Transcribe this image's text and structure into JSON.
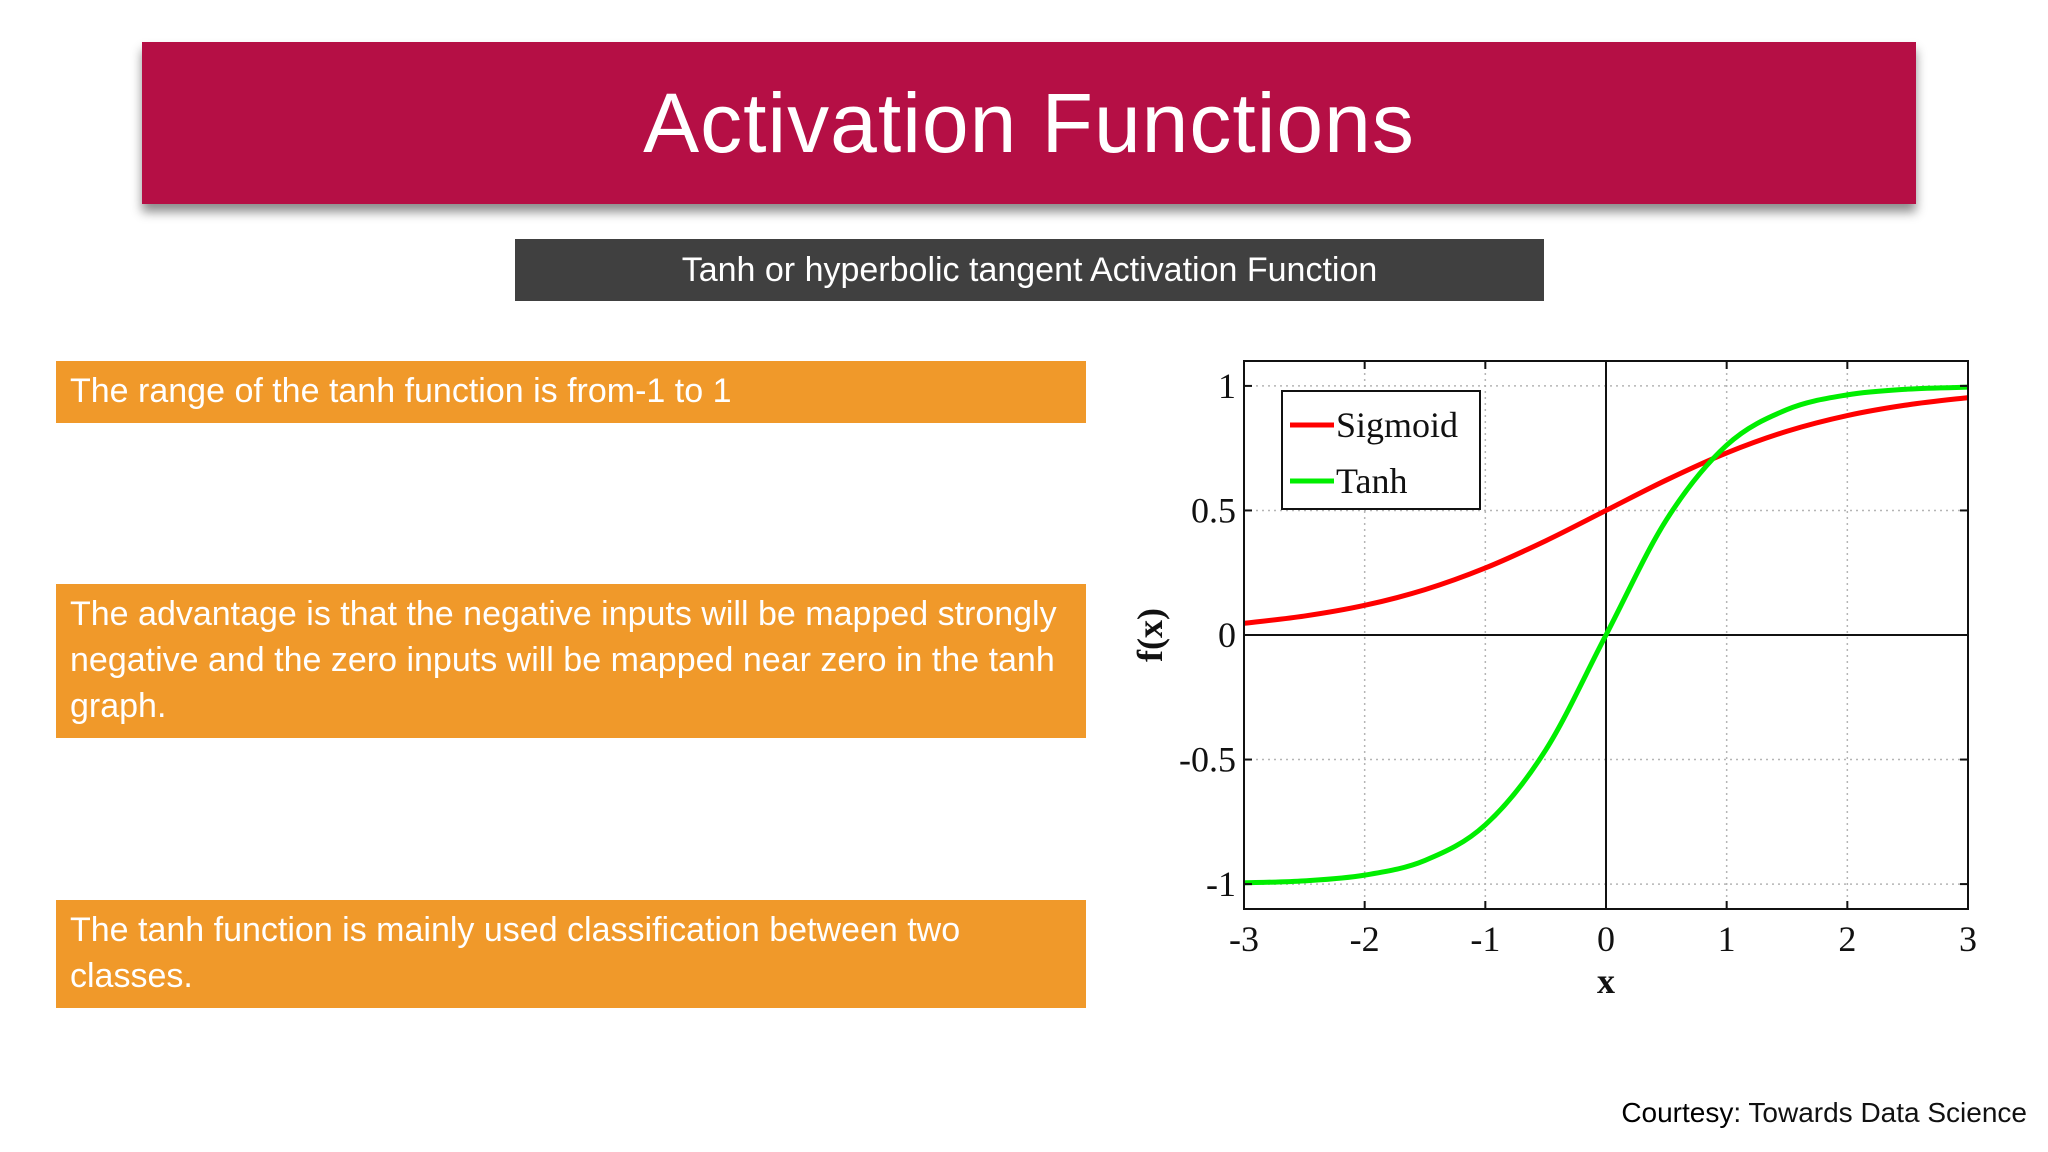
{
  "slide": {
    "title": "Activation Functions",
    "subtitle": "Tanh or hyperbolic tangent Activation Function",
    "points": [
      "The range of the tanh function is from-1 to 1",
      "The advantage is that the negative inputs will be mapped strongly negative and the zero inputs will be mapped near zero in the tanh graph.",
      "The tanh function is mainly used classification between two classes."
    ],
    "courtesy_label": "Courtesy",
    "courtesy_source": ": Towards Data Science",
    "colors": {
      "title_bg": "#b50f45",
      "subtitle_bg": "#404040",
      "point_bg": "#f0992a"
    }
  },
  "chart_data": {
    "type": "line",
    "xlabel": "x",
    "ylabel": "f(x)",
    "xlim": [
      -3,
      3
    ],
    "ylim": [
      -1.1,
      1.1
    ],
    "xticks": [
      -3,
      -2,
      -1,
      0,
      1,
      2,
      3
    ],
    "xtick_labels": [
      "-3",
      "-2",
      "-1",
      "0",
      "1",
      "2",
      "3"
    ],
    "yticks": [
      -1,
      -0.5,
      0,
      0.5,
      1
    ],
    "ytick_labels": [
      "-1",
      "-0.5",
      "0",
      "0.5",
      "1"
    ],
    "grid": true,
    "legend_position": "top-left",
    "x": [
      -3,
      -2.5,
      -2,
      -1.5,
      -1,
      -0.5,
      0,
      0.5,
      1,
      1.5,
      2,
      2.5,
      3
    ],
    "series": [
      {
        "name": "Sigmoid",
        "color": "#ff0000",
        "values": [
          0.047,
          0.076,
          0.119,
          0.182,
          0.269,
          0.378,
          0.5,
          0.622,
          0.731,
          0.818,
          0.881,
          0.924,
          0.953
        ]
      },
      {
        "name": "Tanh",
        "color": "#00ee00",
        "values": [
          -0.995,
          -0.987,
          -0.964,
          -0.905,
          -0.762,
          -0.462,
          0,
          0.462,
          0.762,
          0.905,
          0.964,
          0.987,
          0.995
        ]
      }
    ]
  }
}
